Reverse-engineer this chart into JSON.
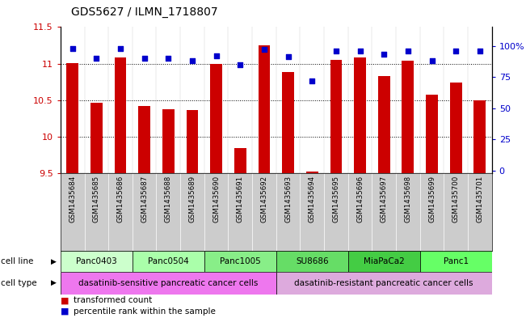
{
  "title": "GDS5627 / ILMN_1718807",
  "samples": [
    "GSM1435684",
    "GSM1435685",
    "GSM1435686",
    "GSM1435687",
    "GSM1435688",
    "GSM1435689",
    "GSM1435690",
    "GSM1435691",
    "GSM1435692",
    "GSM1435693",
    "GSM1435694",
    "GSM1435695",
    "GSM1435696",
    "GSM1435697",
    "GSM1435698",
    "GSM1435699",
    "GSM1435700",
    "GSM1435701"
  ],
  "bar_values": [
    11.01,
    10.47,
    11.08,
    10.42,
    10.38,
    10.36,
    11.0,
    9.84,
    11.25,
    10.88,
    9.52,
    11.05,
    11.08,
    10.83,
    11.04,
    10.57,
    10.74,
    10.5
  ],
  "dot_values": [
    98,
    90,
    98,
    90,
    90,
    88,
    92,
    85,
    97,
    91,
    72,
    96,
    96,
    93,
    96,
    88,
    96,
    96
  ],
  "ylim": [
    9.5,
    11.5
  ],
  "yticks": [
    9.5,
    10.0,
    10.5,
    11.0,
    11.5
  ],
  "ytick_labels": [
    "9.5",
    "10",
    "10.5",
    "11",
    "11.5"
  ],
  "right_yticks": [
    0,
    25,
    50,
    75,
    100
  ],
  "right_ytick_labels": [
    "0",
    "25",
    "50",
    "75",
    "100%"
  ],
  "bar_color": "#cc0000",
  "dot_color": "#0000cc",
  "bar_width": 0.5,
  "cell_lines": [
    {
      "label": "Panc0403",
      "start": 0,
      "end": 3,
      "color": "#ccffcc"
    },
    {
      "label": "Panc0504",
      "start": 3,
      "end": 6,
      "color": "#aaffaa"
    },
    {
      "label": "Panc1005",
      "start": 6,
      "end": 9,
      "color": "#88ee88"
    },
    {
      "label": "SU8686",
      "start": 9,
      "end": 12,
      "color": "#66dd66"
    },
    {
      "label": "MiaPaCa2",
      "start": 12,
      "end": 15,
      "color": "#44cc44"
    },
    {
      "label": "Panc1",
      "start": 15,
      "end": 18,
      "color": "#66ff66"
    }
  ],
  "cell_type_sensitive": {
    "label": "dasatinib-sensitive pancreatic cancer cells",
    "start": 0,
    "end": 9,
    "color": "#ee77ee"
  },
  "cell_type_resistant": {
    "label": "dasatinib-resistant pancreatic cancer cells",
    "start": 9,
    "end": 18,
    "color": "#ddaadd"
  },
  "legend_bar_label": "transformed count",
  "legend_dot_label": "percentile rank within the sample",
  "cell_line_label": "cell line",
  "cell_type_label": "cell type",
  "background_color": "#ffffff",
  "tick_label_color_left": "#cc0000",
  "tick_label_color_right": "#0000cc",
  "title_color": "#000000",
  "sample_bg_color": "#cccccc",
  "font_size": 8
}
